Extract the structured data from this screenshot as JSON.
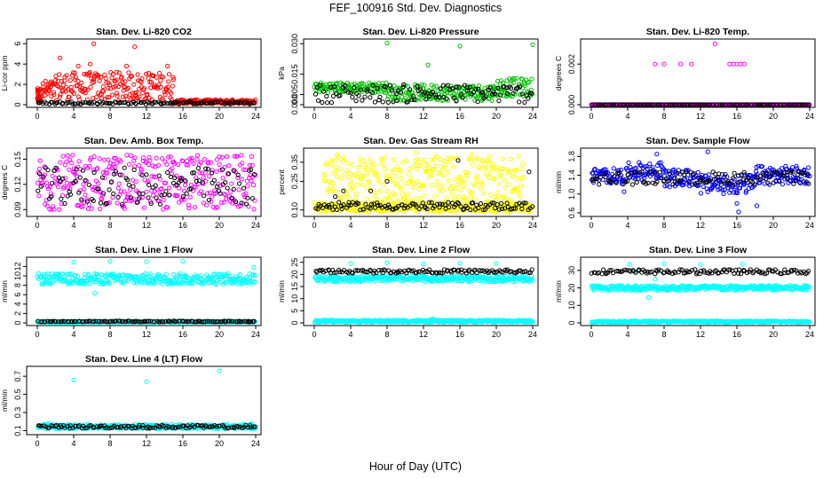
{
  "figure": {
    "title": "FEF_100916  Std. Dev. Diagnostics",
    "xlabel": "Hour of Day (UTC)"
  },
  "chart_data": [
    {
      "type": "scatter",
      "title": "Stan. Dev. Li-820 CO2",
      "xlabel": "",
      "ylabel": "Li-cor ppm",
      "xlim": [
        0,
        24
      ],
      "ylim": [
        0,
        6.2
      ],
      "xticks": [
        "0",
        "4",
        "8",
        "12",
        "16",
        "20",
        "24"
      ],
      "yticks": [
        "0",
        "2",
        "4",
        "6"
      ],
      "ytick_values": [
        0,
        2,
        4,
        6
      ],
      "series": [
        {
          "color": "#ff0000",
          "bands": [
            [
              0,
              0.3,
              0.2,
              1.6
            ],
            [
              0.3,
              2,
              0.3,
              2.4
            ],
            [
              2,
              15,
              0.4,
              3.2
            ],
            [
              15,
              24,
              0.1,
              0.5
            ]
          ],
          "outliers": [
            [
              2.5,
              4.6
            ],
            [
              4.5,
              3.8
            ],
            [
              6.2,
              6.0
            ],
            [
              5.8,
              4.0
            ],
            [
              8.7,
              3.2
            ],
            [
              10.7,
              5.7
            ],
            [
              9.8,
              3.8
            ],
            [
              12.6,
              2.9
            ],
            [
              14.3,
              3.8
            ]
          ]
        },
        {
          "color": "#000000",
          "bands": [
            [
              0,
              24,
              0.05,
              0.3
            ]
          ],
          "outliers": []
        }
      ]
    },
    {
      "type": "scatter",
      "title": "Stan. Dev. Li-820 Pressure",
      "xlabel": "",
      "ylabel": "kPa",
      "xlim": [
        0,
        24
      ],
      "ylim": [
        0,
        0.031
      ],
      "xticks": [
        "0",
        "4",
        "8",
        "12",
        "16",
        "20",
        "24"
      ],
      "yticks": [
        "0.000",
        "0.005",
        "0.015",
        "0.030"
      ],
      "ytick_values": [
        0,
        0.005,
        0.015,
        0.03
      ],
      "series": [
        {
          "color": "#00c000",
          "bands": [
            [
              0,
              8,
              0.006,
              0.011
            ],
            [
              8,
              20,
              0.002,
              0.01
            ],
            [
              20,
              24,
              0.004,
              0.013
            ]
          ],
          "outliers": [
            [
              8,
              0.0303
            ],
            [
              12.5,
              0.0195
            ],
            [
              16,
              0.0288
            ],
            [
              24,
              0.0295
            ]
          ]
        },
        {
          "color": "#000000",
          "bands": [
            [
              0,
              24,
              0.001,
              0.01
            ]
          ],
          "outliers": []
        }
      ]
    },
    {
      "type": "scatter",
      "title": "Stan. Dev. Li-820 Temp.",
      "xlabel": "",
      "ylabel": "degrees C",
      "xlim": [
        0,
        24
      ],
      "ylim": [
        0,
        0.0031
      ],
      "xticks": [
        "0",
        "4",
        "8",
        "12",
        "16",
        "20",
        "24"
      ],
      "yticks": [
        "0.000",
        "0.002"
      ],
      "ytick_values": [
        0,
        0.002
      ],
      "series": [
        {
          "color": "#ff00ff",
          "bands": [
            [
              0,
              24,
              0,
              0
            ]
          ],
          "outliers": [
            [
              7,
              0.002
            ],
            [
              8,
              0.002
            ],
            [
              9.8,
              0.002
            ],
            [
              11,
              0.002
            ],
            [
              13.6,
              0.003
            ],
            [
              15.2,
              0.002
            ],
            [
              15.6,
              0.002
            ],
            [
              16,
              0.002
            ],
            [
              16.4,
              0.002
            ],
            [
              16.8,
              0.002
            ]
          ]
        },
        {
          "color": "#000000",
          "bands": [
            [
              0,
              24,
              0,
              0
            ]
          ],
          "outliers": []
        }
      ]
    },
    {
      "type": "scatter",
      "title": "Stan. Dev. Amb. Box Temp.",
      "xlabel": "",
      "ylabel": "degrees C",
      "xlim": [
        0,
        24
      ],
      "ylim": [
        0.085,
        0.16
      ],
      "xticks": [
        "0",
        "4",
        "8",
        "12",
        "16",
        "20",
        "24"
      ],
      "yticks": [
        "0.09",
        "0.12",
        "0.15"
      ],
      "ytick_values": [
        0.09,
        0.12,
        0.15
      ],
      "series": [
        {
          "color": "#ff00ff",
          "bands": [
            [
              0,
              24,
              0.09,
              0.155
            ]
          ],
          "outliers": []
        },
        {
          "color": "#000000",
          "bands": [
            [
              0,
              24,
              0.095,
              0.14
            ]
          ],
          "outliers": []
        }
      ]
    },
    {
      "type": "scatter",
      "title": "Stan. Dev. Gas Stream RH",
      "xlabel": "",
      "ylabel": "percent",
      "xlim": [
        0,
        24
      ],
      "ylim": [
        0.08,
        0.41
      ],
      "xticks": [
        "0",
        "4",
        "8",
        "12",
        "16",
        "20",
        "24"
      ],
      "yticks": [
        "0.10",
        "0.25",
        "0.35"
      ],
      "ytick_values": [
        0.1,
        0.25,
        0.35
      ],
      "series": [
        {
          "color": "#ffff00",
          "bands": [
            [
              0,
              24,
              0.09,
              0.14
            ],
            [
              1,
              23,
              0.14,
              0.38
            ]
          ],
          "outliers": [
            [
              2.5,
              0.39
            ],
            [
              11.2,
              0.4
            ],
            [
              17.3,
              0.39
            ]
          ]
        },
        {
          "color": "#000000",
          "bands": [
            [
              0,
              24,
              0.1,
              0.14
            ]
          ],
          "outliers": [
            [
              2.3,
              0.17
            ],
            [
              3.2,
              0.2
            ],
            [
              6.2,
              0.2
            ],
            [
              8,
              0.25
            ],
            [
              15.8,
              0.36
            ],
            [
              23.6,
              0.3
            ]
          ]
        }
      ]
    },
    {
      "type": "scatter",
      "title": "Stan. Dev. Sample Flow",
      "xlabel": "",
      "ylabel": "ml/min",
      "xlim": [
        0,
        24
      ],
      "ylim": [
        0.58,
        1.92
      ],
      "xticks": [
        "0",
        "4",
        "8",
        "12",
        "16",
        "20",
        "24"
      ],
      "yticks": [
        "0.6",
        "1.0",
        "1.4",
        "1.8"
      ],
      "ytick_values": [
        0.6,
        1.0,
        1.4,
        1.8
      ],
      "series": [
        {
          "color": "#0000ff",
          "bands": [
            [
              0,
              4,
              1.22,
              1.55
            ],
            [
              4,
              8,
              1.3,
              1.68
            ],
            [
              8,
              12,
              1.15,
              1.52
            ],
            [
              12,
              18,
              1.0,
              1.42
            ],
            [
              18,
              24,
              1.2,
              1.6
            ]
          ],
          "outliers": [
            [
              7.2,
              1.85
            ],
            [
              12.8,
              1.9
            ],
            [
              3.6,
              1.05
            ],
            [
              16.2,
              0.62
            ],
            [
              18.2,
              0.75
            ],
            [
              16,
              0.8
            ]
          ]
        },
        {
          "color": "#000000",
          "bands": [
            [
              0,
              24,
              1.2,
              1.48
            ]
          ],
          "outliers": []
        }
      ]
    },
    {
      "type": "scatter",
      "title": "Stan. Dev. Line 1 Flow",
      "xlabel": "",
      "ylabel": "ml/min",
      "xlim": [
        0,
        24
      ],
      "ylim": [
        0,
        13.4
      ],
      "xticks": [
        "0",
        "4",
        "8",
        "12",
        "16",
        "20",
        "24"
      ],
      "yticks": [
        "0",
        "2",
        "4",
        "6",
        "8",
        "10",
        "12"
      ],
      "ytick_values": [
        0,
        2,
        4,
        6,
        8,
        10,
        12
      ],
      "series": [
        {
          "color": "#00ffff",
          "bands": [
            [
              0,
              24,
              8.2,
              10.5
            ],
            [
              0,
              24,
              0.1,
              0.35
            ]
          ],
          "outliers": [
            [
              4,
              12.9
            ],
            [
              8,
              13.1
            ],
            [
              12,
              13.0
            ],
            [
              16,
              13.1
            ],
            [
              6.3,
              6.3
            ],
            [
              23.8,
              11.8
            ]
          ]
        },
        {
          "color": "#000000",
          "bands": [
            [
              0,
              24,
              0.2,
              0.4
            ]
          ],
          "outliers": []
        }
      ]
    },
    {
      "type": "scatter",
      "title": "Stan. Dev. Line 2 Flow",
      "xlabel": "",
      "ylabel": "ml/min",
      "xlim": [
        0,
        24
      ],
      "ylim": [
        0,
        26
      ],
      "xticks": [
        "0",
        "4",
        "8",
        "12",
        "16",
        "20",
        "24"
      ],
      "yticks": [
        "0",
        "5",
        "10",
        "15",
        "20",
        "25"
      ],
      "ytick_values": [
        0,
        5,
        10,
        15,
        20,
        25
      ],
      "series": [
        {
          "color": "#00ffff",
          "bands": [
            [
              0,
              24,
              17,
              19.5
            ],
            [
              0,
              24,
              0.2,
              1.2
            ]
          ],
          "outliers": [
            [
              4,
              24.5
            ],
            [
              8,
              24.8
            ],
            [
              12,
              24.3
            ],
            [
              16,
              24.6
            ],
            [
              20,
              24.5
            ],
            [
              13,
              1.8
            ]
          ]
        },
        {
          "color": "#000000",
          "bands": [
            [
              0,
              24,
              20.5,
              22
            ]
          ],
          "outliers": []
        }
      ]
    },
    {
      "type": "scatter",
      "title": "Stan. Dev. Line 3 Flow",
      "xlabel": "",
      "ylabel": "ml/min",
      "xlim": [
        0,
        24
      ],
      "ylim": [
        0,
        36
      ],
      "xticks": [
        "0",
        "4",
        "8",
        "12",
        "16",
        "20",
        "24"
      ],
      "yticks": [
        "0",
        "10",
        "20",
        "30"
      ],
      "ytick_values": [
        0,
        10,
        20,
        30
      ],
      "series": [
        {
          "color": "#00ffff",
          "bands": [
            [
              0,
              24,
              18.5,
              21.5
            ],
            [
              0,
              24,
              0.2,
              1.2
            ]
          ],
          "outliers": [
            [
              4.2,
              33.5
            ],
            [
              8,
              33.8
            ],
            [
              12,
              33.4
            ],
            [
              16.6,
              33.6
            ],
            [
              6.3,
              14.5
            ],
            [
              4.8,
              29
            ],
            [
              5.2,
              30.5
            ],
            [
              7,
              25
            ]
          ]
        },
        {
          "color": "#000000",
          "bands": [
            [
              0,
              24,
              28,
              30.5
            ]
          ],
          "outliers": []
        }
      ]
    },
    {
      "type": "scatter",
      "title": "Stan. Dev. Line 4 (LT) Flow",
      "xlabel": "",
      "ylabel": "ml/min",
      "xlim": [
        0,
        24
      ],
      "ylim": [
        0.085,
        0.78
      ],
      "xticks": [
        "0",
        "4",
        "8",
        "12",
        "16",
        "20",
        "24"
      ],
      "yticks": [
        "0.1",
        "0.3",
        "0.5",
        "0.7"
      ],
      "ytick_values": [
        0.1,
        0.3,
        0.5,
        0.7
      ],
      "series": [
        {
          "color": "#00ffff",
          "bands": [
            [
              0,
              24,
              0.12,
              0.17
            ]
          ],
          "outliers": [
            [
              4,
              0.66
            ],
            [
              12,
              0.64
            ],
            [
              20,
              0.76
            ],
            [
              1.2,
              0.18
            ],
            [
              23.5,
              0.18
            ]
          ]
        },
        {
          "color": "#000000",
          "bands": [
            [
              0,
              24,
              0.125,
              0.16
            ]
          ],
          "outliers": []
        }
      ]
    }
  ]
}
